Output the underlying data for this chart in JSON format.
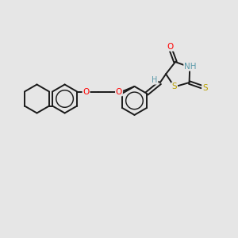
{
  "bg_color": "#e6e6e6",
  "bond_color": "#1a1a1a",
  "bond_width": 1.4,
  "atom_colors": {
    "O": "#ff0000",
    "N": "#5a9aaa",
    "S": "#b8a000",
    "H": "#5a9aaa",
    "C": "#1a1a1a"
  },
  "font_size": 7.5,
  "fig_size": [
    3.0,
    3.0
  ],
  "dpi": 100
}
